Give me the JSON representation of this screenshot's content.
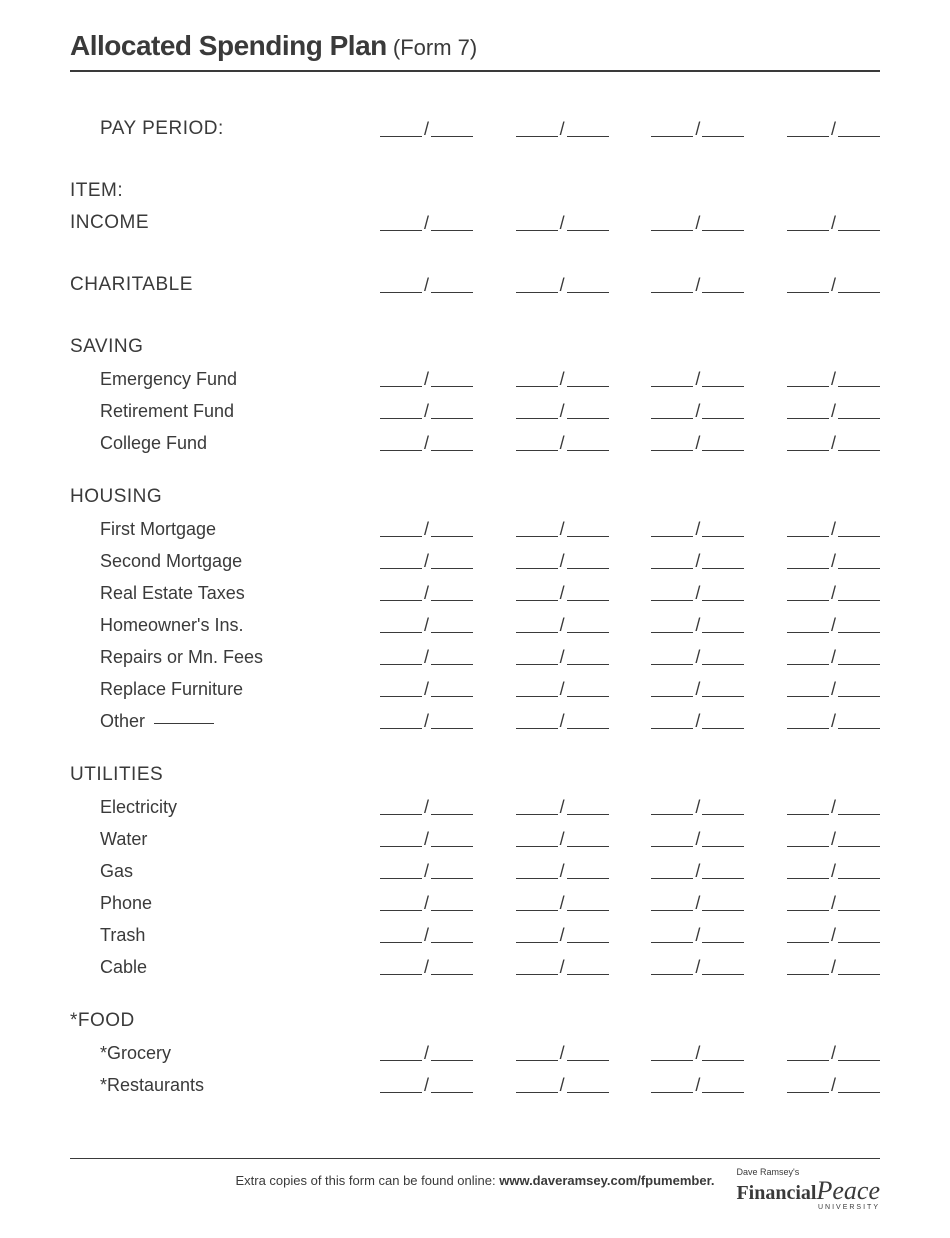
{
  "title": {
    "bold": "Allocated Spending Plan",
    "light": " (Form 7)"
  },
  "headers": {
    "pay_period": "PAY PERIOD:",
    "item": "ITEM:",
    "income": "INCOME",
    "charitable": "CHARITABLE"
  },
  "sections": [
    {
      "name": "SAVING",
      "items": [
        "Emergency Fund",
        "Retirement Fund",
        "College Fund"
      ]
    },
    {
      "name": "HOUSING",
      "items": [
        "First Mortgage",
        "Second Mortgage",
        "Real Estate Taxes",
        "Homeowner's Ins.",
        "Repairs or Mn. Fees",
        "Replace Furniture"
      ],
      "has_other": true,
      "other_label": "Other"
    },
    {
      "name": "UTILITIES",
      "items": [
        "Electricity",
        "Water",
        "Gas",
        "Phone",
        "Trash",
        "Cable"
      ]
    },
    {
      "name": "*FOOD",
      "items": [
        "*Grocery",
        "*Restaurants"
      ]
    }
  ],
  "columns": 4,
  "footer": {
    "text_pre": "Extra copies of this form can be found online: ",
    "text_bold": "www.daveramsey.com/fpumember.",
    "logo_small": "Dave Ramsey's",
    "logo_main": "Financial",
    "logo_script": "Peace",
    "logo_univ": "UNIVERSITY"
  },
  "colors": {
    "text": "#3a3a3a",
    "bg": "#ffffff",
    "line": "#3a3a3a"
  }
}
